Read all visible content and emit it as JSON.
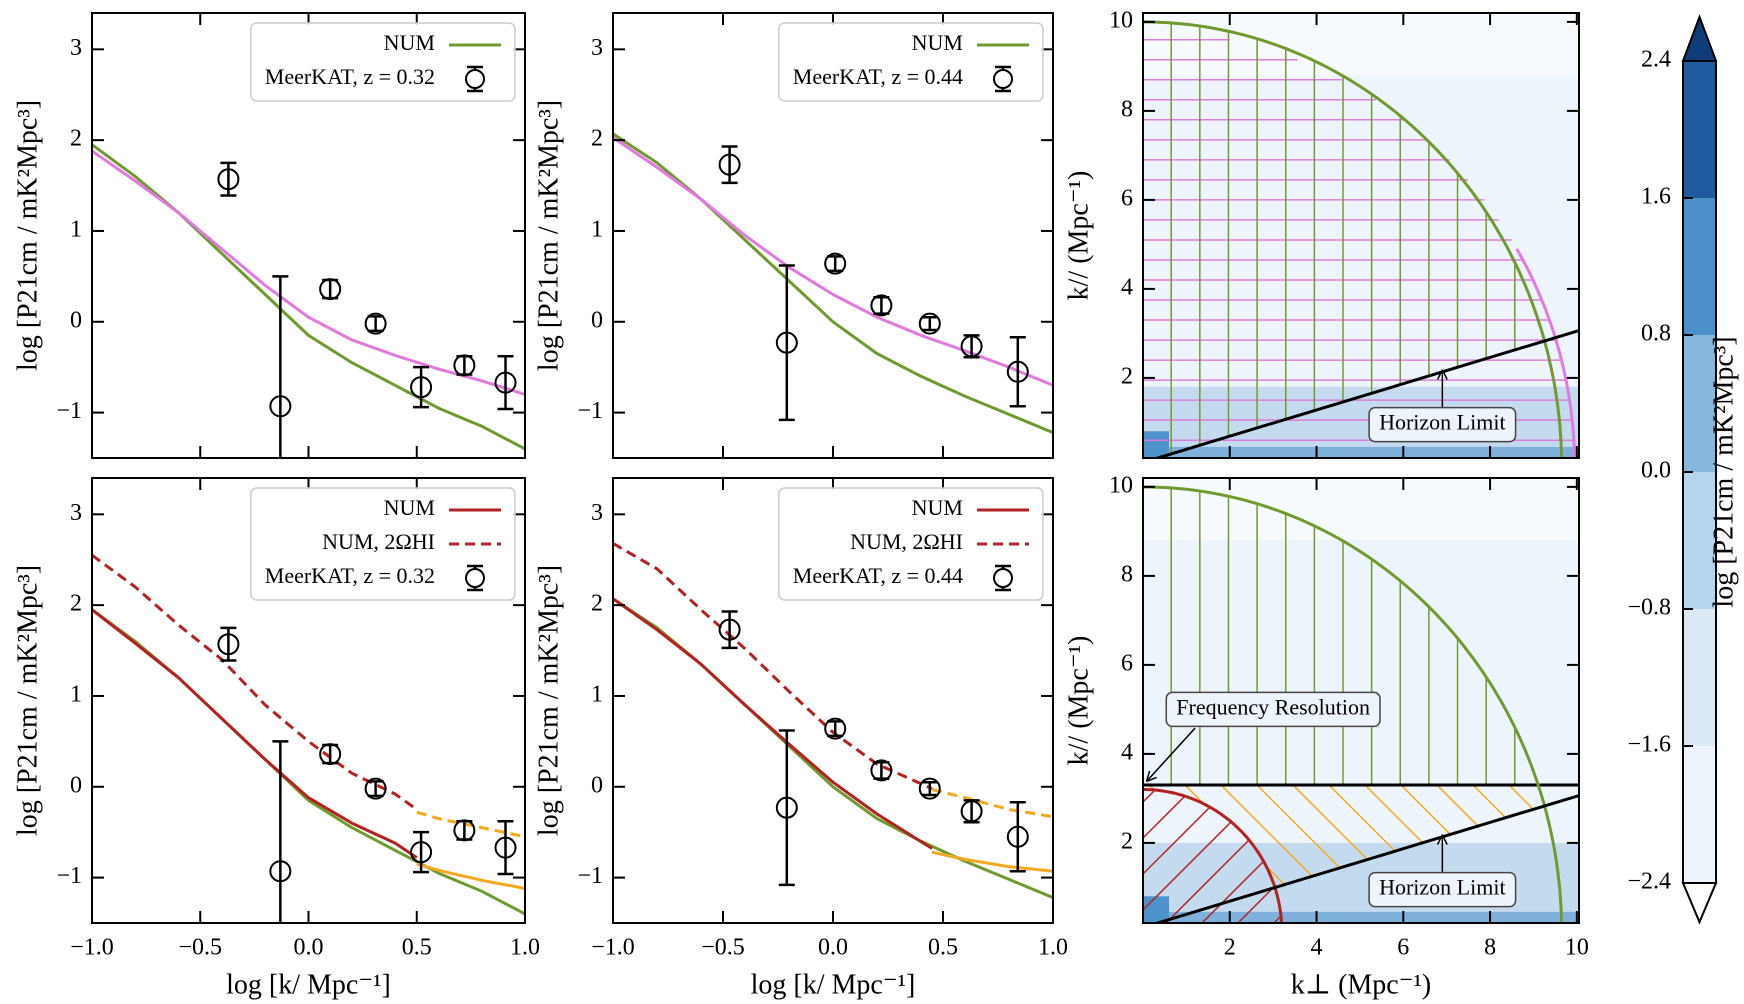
{
  "chart_data": [
    {
      "type": "line",
      "xlim": [
        -1,
        1
      ],
      "ylim": [
        -1.5,
        3.4
      ],
      "xticks": [
        -1,
        -0.5,
        0,
        0.5,
        1
      ],
      "xticklabels": false,
      "yticks": [
        3,
        2,
        1,
        0,
        {
          "value": -1,
          "label": "−1"
        }
      ],
      "ylabel": "log [P21cm / mK²Mpc³]",
      "legend": "upper right",
      "series": [
        {
          "name": "NUM",
          "color": "#6f9a30",
          "x": [
            -1,
            -0.8,
            -0.6,
            -0.4,
            -0.2,
            0,
            0.2,
            0.4,
            0.6,
            0.8,
            1
          ],
          "values": [
            1.95,
            1.6,
            1.2,
            0.75,
            0.3,
            -0.15,
            -0.45,
            -0.7,
            -0.95,
            -1.15,
            -1.4
          ]
        },
        {
          "color": "#e07adc",
          "x": [
            -1,
            -0.8,
            -0.6,
            -0.4,
            -0.2,
            0,
            0.2,
            0.4,
            0.6,
            0.8,
            1
          ],
          "values": [
            1.88,
            1.55,
            1.2,
            0.8,
            0.4,
            0.05,
            -0.2,
            -0.37,
            -0.52,
            -0.65,
            -0.8
          ]
        }
      ],
      "points": {
        "name": "MeerKAT, z = 0.32",
        "color": "#000000",
        "x": [
          -0.37,
          -0.13,
          0.1,
          0.31,
          0.52,
          0.72,
          0.91
        ],
        "values": [
          1.57,
          -0.93,
          0.36,
          -0.02,
          -0.72,
          -0.48,
          -0.67
        ],
        "errors": [
          0.18,
          1.43,
          0.1,
          0.08,
          0.22,
          0.1,
          0.29
        ]
      }
    },
    {
      "type": "line",
      "xlim": [
        -1,
        1
      ],
      "ylim": [
        -1.5,
        3.4
      ],
      "xticks": [
        -1,
        -0.5,
        0,
        0.5,
        1
      ],
      "xticklabels": false,
      "yticks": [
        3,
        2,
        1,
        0,
        {
          "value": -1,
          "label": "−1"
        }
      ],
      "ylabel": "log [P21cm / mK²Mpc³]",
      "legend": "upper right",
      "series": [
        {
          "name": "NUM",
          "color": "#6f9a30",
          "x": [
            -1,
            -0.8,
            -0.6,
            -0.4,
            -0.2,
            0,
            0.2,
            0.4,
            0.6,
            0.8,
            1
          ],
          "values": [
            2.07,
            1.75,
            1.35,
            0.9,
            0.45,
            0.0,
            -0.35,
            -0.6,
            -0.82,
            -1.02,
            -1.22
          ]
        },
        {
          "color": "#e07adc",
          "x": [
            -1,
            -0.8,
            -0.6,
            -0.4,
            -0.2,
            0,
            0.2,
            0.4,
            0.6,
            0.8,
            1
          ],
          "values": [
            2.03,
            1.7,
            1.35,
            0.95,
            0.6,
            0.3,
            0.05,
            -0.15,
            -0.32,
            -0.5,
            -0.7
          ]
        }
      ],
      "points": {
        "name": "MeerKAT, z = 0.44",
        "color": "#000000",
        "x": [
          -0.47,
          -0.21,
          0.01,
          0.22,
          0.44,
          0.63,
          0.84
        ],
        "values": [
          1.73,
          -0.23,
          0.64,
          0.18,
          -0.02,
          -0.27,
          -0.55
        ],
        "errors": [
          0.2,
          0.85,
          0.08,
          0.09,
          0.07,
          0.12,
          0.38
        ]
      }
    },
    {
      "type": "line",
      "xlim": [
        -1,
        1
      ],
      "ylim": [
        -1.5,
        3.4
      ],
      "xticks": [
        {
          "value": -1,
          "label": "−1.0"
        },
        {
          "value": -0.5,
          "label": "−0.5"
        },
        {
          "value": 0,
          "label": "0.0"
        },
        0.5,
        {
          "value": 1,
          "label": "1.0"
        }
      ],
      "yticks": [
        3,
        2,
        1,
        0,
        {
          "value": -1,
          "label": "−1"
        }
      ],
      "xlabel": "log [k/ Mpc⁻¹]",
      "ylabel": "log [P21cm / mK²Mpc³]",
      "legend": "upper right",
      "series": [
        {
          "color": "#6f9a30",
          "x": [
            -1,
            -0.8,
            -0.6,
            -0.4,
            -0.2,
            0,
            0.2,
            0.4,
            0.6,
            0.8,
            1
          ],
          "values": [
            1.95,
            1.6,
            1.2,
            0.75,
            0.3,
            -0.15,
            -0.45,
            -0.7,
            -0.95,
            -1.15,
            -1.4
          ]
        },
        {
          "name": "NUM",
          "color": "#b22222",
          "x": [
            -1,
            -0.8,
            -0.6,
            -0.4,
            -0.2,
            0,
            0.2,
            0.4,
            0.5
          ],
          "values": [
            1.95,
            1.58,
            1.2,
            0.75,
            0.3,
            -0.12,
            -0.4,
            -0.62,
            -0.78
          ]
        },
        {
          "name": "NUM, 2ΩHI",
          "color": "#b22222",
          "dash": true,
          "x": [
            -1,
            -0.8,
            -0.6,
            -0.4,
            -0.2,
            0,
            0.2,
            0.4,
            0.5
          ],
          "values": [
            2.55,
            2.2,
            1.78,
            1.4,
            0.9,
            0.5,
            0.15,
            -0.08,
            -0.25
          ]
        },
        {
          "color": "#f4a81d",
          "x": [
            0.5,
            0.6,
            0.8,
            1
          ],
          "values": [
            -0.85,
            -0.92,
            -1.03,
            -1.12
          ]
        },
        {
          "color": "#f4a81d",
          "dash": true,
          "x": [
            0.5,
            0.6,
            0.8,
            1
          ],
          "values": [
            -0.28,
            -0.35,
            -0.45,
            -0.55
          ]
        }
      ],
      "points": {
        "name": "MeerKAT, z = 0.32",
        "color": "#000000",
        "x": [
          -0.37,
          -0.13,
          0.1,
          0.31,
          0.52,
          0.72,
          0.91
        ],
        "values": [
          1.57,
          -0.93,
          0.36,
          -0.02,
          -0.72,
          -0.48,
          -0.67
        ],
        "errors": [
          0.18,
          1.43,
          0.1,
          0.08,
          0.22,
          0.1,
          0.29
        ]
      }
    },
    {
      "type": "line",
      "xlim": [
        -1,
        1
      ],
      "ylim": [
        -1.5,
        3.4
      ],
      "xticks": [
        {
          "value": -1,
          "label": "−1.0"
        },
        {
          "value": -0.5,
          "label": "−0.5"
        },
        {
          "value": 0,
          "label": "0.0"
        },
        0.5,
        {
          "value": 1,
          "label": "1.0"
        }
      ],
      "yticks": [
        3,
        2,
        1,
        0,
        {
          "value": -1,
          "label": "−1"
        }
      ],
      "xlabel": "log [k/ Mpc⁻¹]",
      "ylabel": "log [P21cm / mK²Mpc³]",
      "legend": "upper right",
      "series": [
        {
          "color": "#6f9a30",
          "x": [
            -1,
            -0.8,
            -0.6,
            -0.4,
            -0.2,
            0,
            0.2,
            0.4,
            0.6,
            0.8,
            1
          ],
          "values": [
            2.07,
            1.75,
            1.35,
            0.9,
            0.45,
            0.0,
            -0.35,
            -0.6,
            -0.82,
            -1.02,
            -1.22
          ]
        },
        {
          "name": "NUM",
          "color": "#b22222",
          "x": [
            -1,
            -0.8,
            -0.6,
            -0.4,
            -0.2,
            0,
            0.2,
            0.45
          ],
          "values": [
            2.07,
            1.73,
            1.35,
            0.9,
            0.47,
            0.05,
            -0.3,
            -0.68
          ]
        },
        {
          "name": "NUM, 2ΩHI",
          "color": "#b22222",
          "dash": true,
          "x": [
            -1,
            -0.8,
            -0.6,
            -0.4,
            -0.2,
            0,
            0.2,
            0.45
          ],
          "values": [
            2.68,
            2.4,
            1.95,
            1.52,
            1.05,
            0.6,
            0.25,
            -0.02
          ]
        },
        {
          "color": "#f4a81d",
          "x": [
            0.45,
            0.6,
            0.8,
            1
          ],
          "values": [
            -0.72,
            -0.8,
            -0.88,
            -0.93
          ]
        },
        {
          "color": "#f4a81d",
          "dash": true,
          "x": [
            0.45,
            0.6,
            0.8,
            1
          ],
          "values": [
            -0.03,
            -0.12,
            -0.25,
            -0.33
          ]
        }
      ],
      "points": {
        "name": "MeerKAT, z = 0.44",
        "color": "#000000",
        "x": [
          -0.47,
          -0.21,
          0.01,
          0.22,
          0.44,
          0.63,
          0.84
        ],
        "values": [
          1.73,
          -0.23,
          0.64,
          0.18,
          -0.02,
          -0.27,
          -0.55
        ],
        "errors": [
          0.2,
          0.85,
          0.08,
          0.09,
          0.07,
          0.12,
          0.38
        ]
      }
    },
    {
      "type": "kspace",
      "xlim": [
        0,
        10.05
      ],
      "ylim": [
        0.2,
        10.2
      ],
      "xticks": [
        2,
        4,
        6,
        8,
        10
      ],
      "xticklabels": false,
      "yticks": [
        2,
        4,
        6,
        8,
        10
      ],
      "ylabel": "k// (Mpc⁻¹)",
      "annotations": [
        "Horizon Limit"
      ]
    },
    {
      "type": "kspace",
      "xlim": [
        0,
        10.05
      ],
      "ylim": [
        0.2,
        10.2
      ],
      "xticks": [
        2,
        4,
        6,
        8,
        10
      ],
      "yticks": [
        2,
        4,
        6,
        8,
        10
      ],
      "xlabel": "k⊥ (Mpc⁻¹)",
      "ylabel": "k// (Mpc⁻¹)",
      "annotations": [
        "Horizon Limit",
        "Frequency Resolution"
      ]
    },
    {
      "type": "colorbar",
      "ylim": [
        -2.4,
        2.4
      ],
      "yticks": [
        {
          "value": -2.4,
          "label": "−2.4"
        },
        {
          "value": -1.6,
          "label": "−1.6"
        },
        {
          "value": -0.8,
          "label": "−0.8"
        },
        {
          "value": 0,
          "label": "0.0"
        },
        0.8,
        1.6,
        2.4
      ],
      "colors": [
        "#eef4fb",
        "#dce9f6",
        "#b6d4ec",
        "#86b8de",
        "#4d91cc",
        "#1f5b9e"
      ],
      "extend_colors": [
        "#ffffff",
        "#0e3d7a"
      ],
      "ylabel": "log [P21cm / mK²Mpc³]"
    }
  ]
}
